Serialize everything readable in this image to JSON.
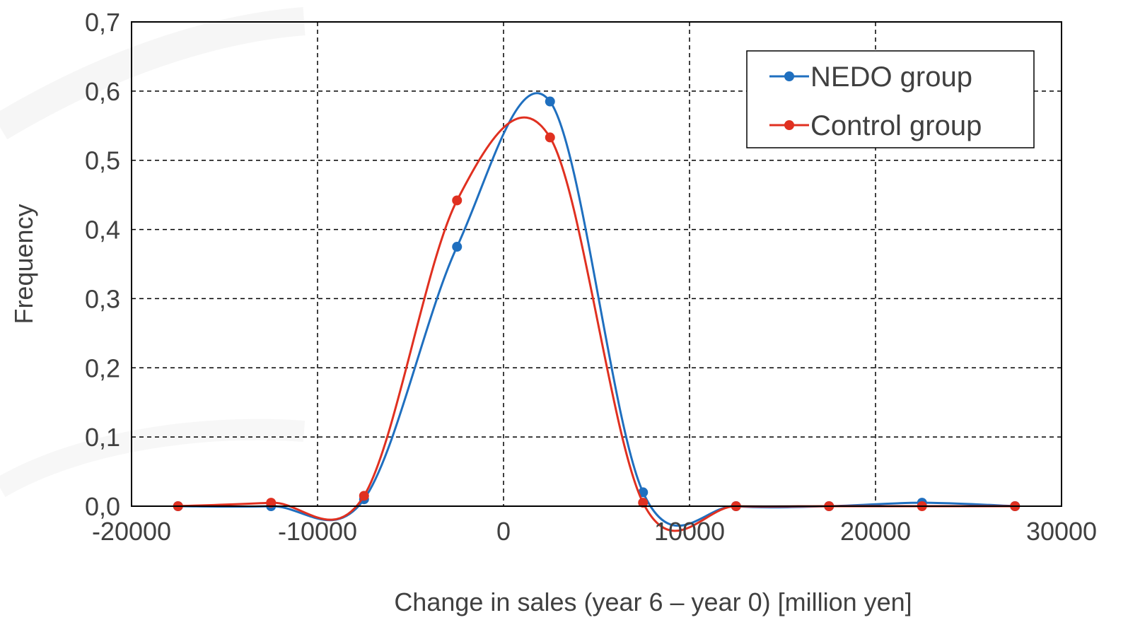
{
  "chart_data": {
    "type": "line",
    "smoothed": true,
    "xlabel": "Change in sales (year 6 – year 0)    [million yen]",
    "ylabel": "Frequency",
    "xlim": [
      -20000,
      30000
    ],
    "ylim": [
      0,
      0.7
    ],
    "x_ticks": [
      -20000,
      -10000,
      0,
      10000,
      20000,
      30000
    ],
    "x_tick_labels": [
      "-20000",
      "-10000",
      "0",
      "10000",
      "20000",
      "30000"
    ],
    "y_ticks": [
      0,
      0.1,
      0.2,
      0.3,
      0.4,
      0.5,
      0.6,
      0.7
    ],
    "y_tick_labels": [
      "0,0",
      "0,1",
      "0,2",
      "0,3",
      "0,4",
      "0,5",
      "0,6",
      "0,7"
    ],
    "grid": true,
    "legend_position": "top-right",
    "series": [
      {
        "name": "NEDO group",
        "color": "#1f6fbf",
        "points": [
          [
            -17500,
            0.0
          ],
          [
            -12500,
            0.0
          ],
          [
            -7500,
            0.01
          ],
          [
            -2500,
            0.375
          ],
          [
            2500,
            0.585
          ],
          [
            7500,
            0.02
          ],
          [
            12500,
            0.0
          ],
          [
            17500,
            0.0
          ],
          [
            22500,
            0.005
          ],
          [
            27500,
            0.0
          ]
        ]
      },
      {
        "name": "Control group",
        "color": "#e03020",
        "points": [
          [
            -17500,
            0.0
          ],
          [
            -12500,
            0.005
          ],
          [
            -7500,
            0.015
          ],
          [
            -2500,
            0.442
          ],
          [
            2500,
            0.533
          ],
          [
            7500,
            0.005
          ],
          [
            12500,
            0.0
          ],
          [
            17500,
            0.0
          ],
          [
            22500,
            0.0
          ],
          [
            27500,
            0.0
          ]
        ]
      }
    ]
  }
}
